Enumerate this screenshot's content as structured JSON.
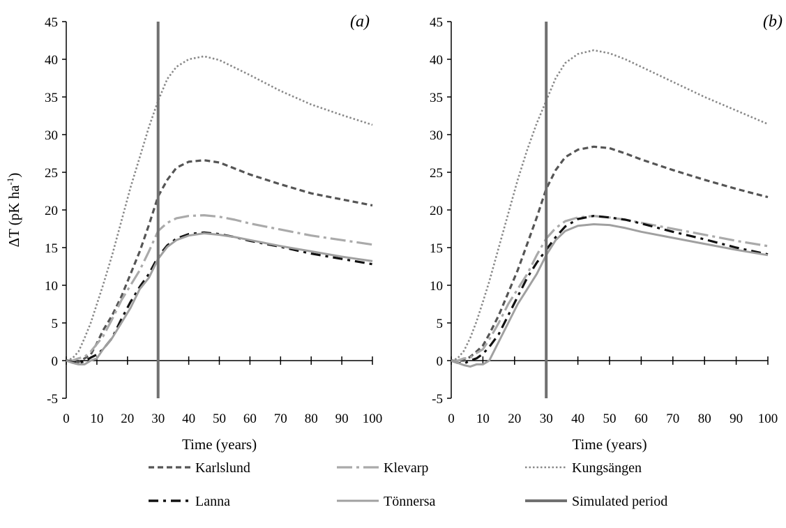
{
  "chart_data": [
    {
      "type": "line",
      "panel_label": "(a)",
      "xlabel": "Time (years)",
      "ylabel_main": "ΔT (pK ha",
      "ylabel_sup": "-1",
      "ylabel_close": ")",
      "xlim": [
        0,
        100
      ],
      "ylim": [
        -5,
        45
      ],
      "xticks": [
        "0",
        "10",
        "20",
        "30",
        "40",
        "50",
        "60",
        "70",
        "80",
        "90",
        "100"
      ],
      "yticks": [
        "-5",
        "0",
        "5",
        "10",
        "15",
        "20",
        "25",
        "30",
        "35",
        "40",
        "45"
      ],
      "grid": false,
      "simulated_period_end": 30,
      "series": [
        {
          "name": "Karlslund",
          "x": [
            0,
            2,
            4,
            6,
            8,
            10,
            12,
            15,
            18,
            21,
            24,
            27,
            30,
            33,
            36,
            40,
            45,
            50,
            55,
            60,
            70,
            80,
            90,
            100
          ],
          "y": [
            0,
            0,
            -0.2,
            0.3,
            0.8,
            2.3,
            4,
            6,
            8.5,
            11.5,
            14.5,
            18,
            21.8,
            24,
            25.6,
            26.4,
            26.6,
            26.3,
            25.5,
            24.7,
            23.4,
            22.2,
            21.4,
            20.6
          ]
        },
        {
          "name": "Klevarp",
          "x": [
            0,
            2,
            4,
            6,
            8,
            10,
            12,
            15,
            18,
            21,
            24,
            27,
            30,
            33,
            36,
            40,
            45,
            50,
            55,
            60,
            70,
            80,
            90,
            100
          ],
          "y": [
            0,
            0,
            0.3,
            0.5,
            1.2,
            2.2,
            3.2,
            5.5,
            8,
            10,
            12,
            14.5,
            17.2,
            18.3,
            18.9,
            19.2,
            19.3,
            19.1,
            18.7,
            18.2,
            17.4,
            16.6,
            16,
            15.4
          ]
        },
        {
          "name": "Kungsängen",
          "x": [
            0,
            2,
            4,
            6,
            8,
            10,
            12,
            15,
            18,
            21,
            24,
            27,
            30,
            33,
            36,
            40,
            45,
            50,
            55,
            60,
            70,
            80,
            90,
            100
          ],
          "y": [
            0,
            0.3,
            1.2,
            3,
            5,
            7.5,
            10,
            14,
            18.5,
            23,
            27,
            31,
            34.5,
            37.4,
            39,
            40,
            40.4,
            39.9,
            38.9,
            37.9,
            35.8,
            34,
            32.6,
            31.3
          ]
        },
        {
          "name": "Lanna",
          "x": [
            0,
            2,
            4,
            6,
            8,
            10,
            12,
            15,
            18,
            21,
            24,
            27,
            30,
            33,
            36,
            40,
            45,
            50,
            55,
            60,
            70,
            80,
            90,
            100
          ],
          "y": [
            0,
            -0.2,
            -0.3,
            -0.1,
            0.4,
            0.8,
            1.5,
            3,
            5.5,
            7.8,
            9.8,
            11.5,
            13.8,
            15.3,
            16.2,
            16.8,
            17,
            16.8,
            16.4,
            15.9,
            15.1,
            14.2,
            13.5,
            12.8
          ]
        },
        {
          "name": "Tönnersa",
          "x": [
            0,
            2,
            4,
            6,
            8,
            10,
            12,
            15,
            18,
            21,
            24,
            27,
            30,
            33,
            36,
            40,
            45,
            50,
            55,
            60,
            70,
            80,
            90,
            100
          ],
          "y": [
            0,
            -0.3,
            -0.5,
            -0.5,
            0,
            0.3,
            1.5,
            3,
            5,
            7,
            9.5,
            11,
            13.5,
            15.1,
            16,
            16.6,
            16.9,
            16.7,
            16.4,
            16,
            15.2,
            14.5,
            13.8,
            13.2
          ]
        }
      ]
    },
    {
      "type": "line",
      "panel_label": "(b)",
      "xlabel": "Time (years)",
      "xlim": [
        0,
        100
      ],
      "ylim": [
        -5,
        45
      ],
      "xticks": [
        "0",
        "10",
        "20",
        "30",
        "40",
        "50",
        "60",
        "70",
        "80",
        "90",
        "100"
      ],
      "yticks": [
        "-5",
        "0",
        "5",
        "10",
        "15",
        "20",
        "25",
        "30",
        "35",
        "40",
        "45"
      ],
      "grid": false,
      "simulated_period_end": 30,
      "series": [
        {
          "name": "Karlslund",
          "x": [
            0,
            2,
            4,
            6,
            8,
            10,
            12,
            15,
            18,
            21,
            24,
            27,
            30,
            33,
            36,
            40,
            45,
            50,
            55,
            60,
            70,
            80,
            90,
            100
          ],
          "y": [
            0,
            0,
            0,
            0.5,
            1.2,
            2,
            3.5,
            6,
            9,
            12,
            15.5,
            19,
            22.8,
            25.3,
            27,
            28,
            28.4,
            28.2,
            27.5,
            26.7,
            25.3,
            24,
            22.8,
            21.7
          ]
        },
        {
          "name": "Klevarp",
          "x": [
            0,
            2,
            4,
            6,
            8,
            10,
            12,
            15,
            18,
            21,
            24,
            27,
            30,
            33,
            36,
            40,
            45,
            50,
            55,
            60,
            70,
            80,
            90,
            100
          ],
          "y": [
            0,
            0,
            0.3,
            0.4,
            1,
            1.5,
            2.8,
            5,
            7.5,
            9.5,
            11.5,
            14,
            16.2,
            17.6,
            18.5,
            19,
            19.2,
            19,
            18.7,
            18.3,
            17.5,
            16.7,
            15.9,
            15.2
          ]
        },
        {
          "name": "Kungsängen",
          "x": [
            0,
            2,
            4,
            6,
            8,
            10,
            12,
            15,
            18,
            21,
            24,
            27,
            30,
            33,
            36,
            40,
            45,
            50,
            55,
            60,
            70,
            80,
            90,
            100
          ],
          "y": [
            0,
            0.3,
            1.3,
            3,
            5.2,
            7.8,
            10.5,
            15,
            19.5,
            24,
            28,
            31.5,
            34.5,
            37.5,
            39.5,
            40.7,
            41.2,
            40.8,
            40,
            39,
            37,
            35,
            33.2,
            31.4
          ]
        },
        {
          "name": "Lanna",
          "x": [
            0,
            2,
            4,
            6,
            8,
            10,
            12,
            15,
            18,
            21,
            24,
            27,
            30,
            33,
            36,
            40,
            45,
            50,
            55,
            60,
            70,
            80,
            90,
            100
          ],
          "y": [
            0,
            -0.3,
            -0.4,
            0,
            0.3,
            0.9,
            1.8,
            3.5,
            6,
            8.5,
            11,
            13,
            14.7,
            16.4,
            17.8,
            18.8,
            19.2,
            19,
            18.7,
            18.2,
            17.1,
            16.1,
            15,
            14.1
          ]
        },
        {
          "name": "Tönnersa",
          "x": [
            0,
            2,
            4,
            6,
            8,
            10,
            12,
            15,
            18,
            21,
            24,
            27,
            30,
            33,
            36,
            40,
            45,
            50,
            55,
            60,
            70,
            80,
            90,
            100
          ],
          "y": [
            0,
            -0.3,
            -0.6,
            -0.8,
            -0.5,
            -0.5,
            0,
            2.5,
            5,
            7.5,
            9.5,
            11.5,
            14,
            16,
            17.2,
            17.9,
            18.1,
            18,
            17.6,
            17.1,
            16.3,
            15.5,
            14.7,
            14
          ]
        }
      ]
    }
  ],
  "legend": [
    {
      "name": "Karlslund",
      "color": "#555555",
      "dash": "dashed"
    },
    {
      "name": "Klevarp",
      "color": "#aaaaaa",
      "dash": "long-dash-dot"
    },
    {
      "name": "Kungsängen",
      "color": "#888888",
      "dash": "dotted"
    },
    {
      "name": "Lanna",
      "color": "#000000",
      "dash": "dash-dot"
    },
    {
      "name": "Tönnersa",
      "color": "#999999",
      "dash": "solid"
    },
    {
      "name": "Simulated period",
      "color": "#666666",
      "dash": "solid-thick"
    }
  ],
  "colors": {
    "Karlslund": "#555555",
    "Klevarp": "#aaaaaa",
    "Kungsängen": "#888888",
    "Lanna": "#111111",
    "Tönnersa": "#a0a0a0",
    "Simulated period": "#707070"
  }
}
